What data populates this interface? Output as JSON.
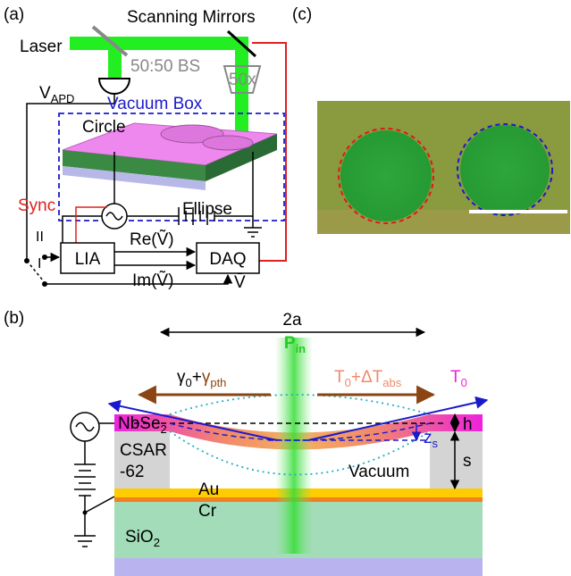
{
  "panel_a": {
    "label": "(a)",
    "laser": "Laser",
    "scanning_mirrors": "Scanning Mirrors",
    "beam_splitter": "50:50 BS",
    "objective": "50x",
    "detector_voltage": {
      "main": "V",
      "sub": "APD"
    },
    "vacuum_box": "Vacuum Box",
    "circle": "Circle",
    "ellipse": "Ellipse",
    "sync": "Sync",
    "switch_ii": "II",
    "switch_i": "I",
    "lia": "LIA",
    "daq": "DAQ",
    "re_v": "Re(Ṽ)",
    "im_v": "Im(Ṽ)",
    "v_bar": "V̄"
  },
  "panel_b": {
    "label": "(b)",
    "width": "2a",
    "power": {
      "main": "P",
      "sub": "in"
    },
    "damping": {
      "a": "γ",
      "a_sub": "0",
      "plus": "+",
      "b": "γ",
      "b_sub": "pth"
    },
    "temperature": {
      "a": "T",
      "a_sub": "0",
      "plus": "+ΔT",
      "sub": "abs"
    },
    "base_temperature": {
      "main": "T",
      "sub": "0"
    },
    "membrane": {
      "main": "NbSe",
      "sub": "2"
    },
    "resist": [
      "CSAR",
      "-62"
    ],
    "thickness": "h",
    "gap": "s",
    "deflection": {
      "main": "z",
      "sub": "s"
    },
    "vacuum": "Vacuum",
    "gold": "Au",
    "chromium": "Cr",
    "substrate": {
      "main": "SiO",
      "sub": "2"
    }
  },
  "panel_c": {
    "label": "(c)"
  }
}
